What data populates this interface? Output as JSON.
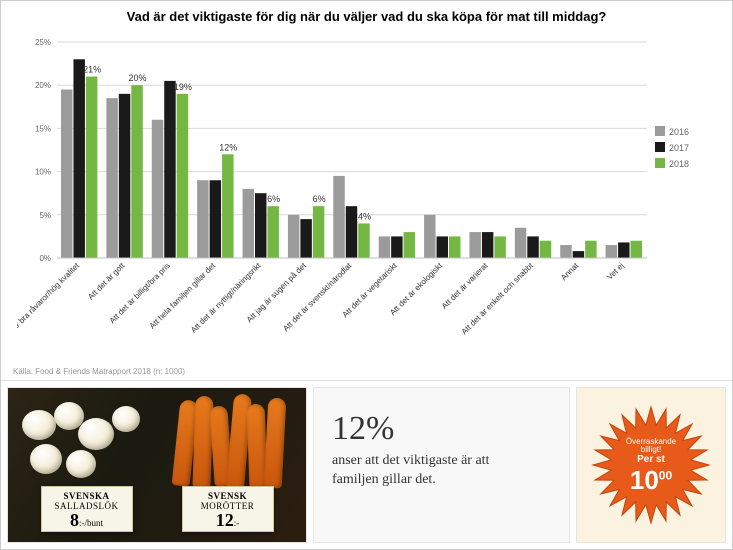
{
  "chart": {
    "type": "bar",
    "title": "Vad är det viktigaste för dig när du väljer vad du ska köpa för mat till middag?",
    "title_fontsize": 13,
    "categories": [
      "Att det är bra råvaror/hög kvalitet",
      "Att det är gott",
      "Att det är billigt/bra pris",
      "Att hela familjen gillar det",
      "Att det är nyttigt/näringsrikt",
      "Att jag är sugen på det",
      "Att det är svenskt/närodlat",
      "Att det är vegetariskt",
      "Att det är ekologiskt",
      "Att det är varierat",
      "Att det är enkelt och snabbt",
      "Annat",
      "Vet ej"
    ],
    "series": [
      {
        "name": "2016",
        "color": "#9b9b9b",
        "values": [
          19.5,
          18.5,
          16,
          9,
          8,
          5,
          9.5,
          2.5,
          5,
          3,
          3.5,
          1.5,
          1.5
        ]
      },
      {
        "name": "2017",
        "color": "#1a1a1a",
        "values": [
          23,
          19,
          20.5,
          9,
          7.5,
          4.5,
          6,
          2.5,
          2.5,
          3,
          2.5,
          0.8,
          1.8
        ]
      },
      {
        "name": "2018",
        "color": "#74b843",
        "values": [
          21,
          20,
          19,
          12,
          6,
          6,
          4,
          3,
          2.5,
          2.5,
          2,
          2,
          2
        ]
      }
    ],
    "value_labels": [
      {
        "cat": 0,
        "series": 2,
        "text": "21%"
      },
      {
        "cat": 1,
        "series": 2,
        "text": "20%"
      },
      {
        "cat": 2,
        "series": 2,
        "text": "19%"
      },
      {
        "cat": 3,
        "series": 2,
        "text": "12%"
      },
      {
        "cat": 4,
        "series": 2,
        "text": "6%"
      },
      {
        "cat": 5,
        "series": 2,
        "text": "6%"
      },
      {
        "cat": 6,
        "series": 2,
        "text": "4%"
      }
    ],
    "ylim": [
      0,
      25
    ],
    "ytick_step": 5,
    "y_suffix": "%",
    "background_color": "#ffffff",
    "grid_color": "#d9d9d9",
    "axis_color": "#bfbfbf",
    "label_fontsize": 8,
    "tick_fontsize": 8,
    "bar_gap_inner": 1,
    "bar_group_width": 36,
    "legend_position": "right"
  },
  "source_line": "Källa: Food & Friends Matrapport 2018  (n: 1000)",
  "photo": {
    "card1_line1": "SVENSKA",
    "card1_line2": "SALLADSLÖK",
    "card1_price": "8",
    "card1_unit": ":-/bunt",
    "card2_line1": "SVENSK",
    "card2_line2": "MORÖTTER",
    "card2_price": "12",
    "card2_unit": ":-"
  },
  "callout": {
    "stat": "12%",
    "caption": "anser att det viktigaste är att familjen gillar det."
  },
  "badge": {
    "line1": "Överraskande",
    "line2": "billigt!",
    "line3": "Per st",
    "price_main": "10",
    "price_dec": "00",
    "fill": "#e85a1a",
    "text_color": "#ffffff"
  }
}
